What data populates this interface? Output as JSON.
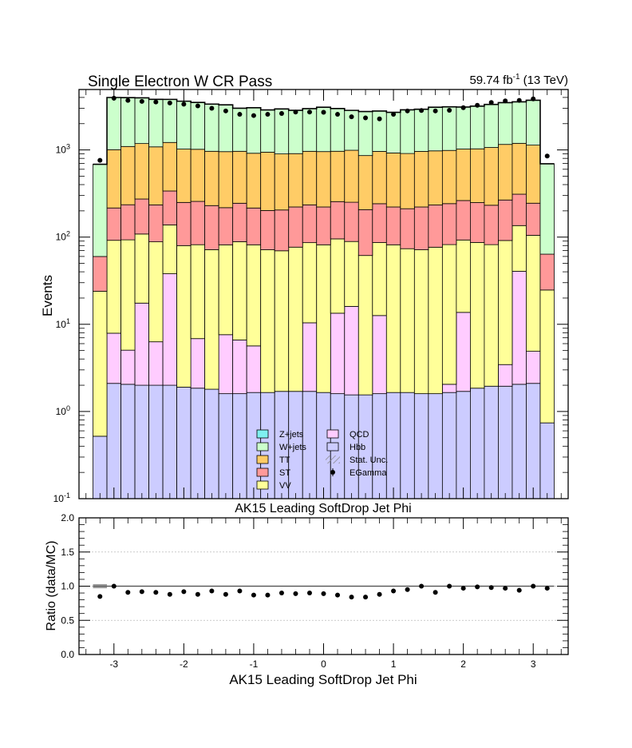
{
  "colors": {
    "zjets": "#7ff0f0",
    "wjets": "#ccffcc",
    "tt": "#ffcc66",
    "st": "#ff9999",
    "vv": "#ffff99",
    "qcd": "#ffccff",
    "hbb": "#ccccff",
    "data": "#000000",
    "unc": "#888888"
  },
  "chart_data": [
    {
      "type": "area",
      "title": "Single Electron W CR Pass",
      "lumi_label": "59.74 fb",
      "lumi_exp": "-1",
      "energy_label": "(13 TeV)",
      "ylabel": "Events",
      "yscale": "log",
      "ylim": [
        0.1,
        6000
      ],
      "yticks": [
        "10",
        "10",
        "10",
        "10",
        "10",
        "10"
      ],
      "yticks_exp": [
        "-1",
        "0",
        "1",
        "2",
        "3",
        ""
      ],
      "xlim": [
        -3.5,
        3.5
      ],
      "subtitle": "AK15 Leading SoftDrop Jet Phi",
      "bin_edges": [
        -3.3,
        -3.1,
        -2.9,
        -2.7,
        -2.5,
        -2.3,
        -2.1,
        -1.9,
        -1.7,
        -1.5,
        -1.3,
        -1.1,
        -0.9,
        -0.7,
        -0.5,
        -0.3,
        -0.1,
        0.1,
        0.3,
        0.5,
        0.7,
        0.9,
        1.1,
        1.3,
        1.5,
        1.7,
        1.9,
        2.1,
        2.3,
        2.5,
        2.7,
        2.9,
        3.1,
        3.3
      ],
      "series": [
        {
          "name": "Hbb",
          "key": "hbb",
          "values": [
            0.42,
            2.0,
            1.95,
            1.9,
            1.9,
            1.9,
            1.8,
            1.75,
            1.7,
            1.5,
            1.5,
            1.55,
            1.55,
            1.6,
            1.6,
            1.6,
            1.55,
            1.5,
            1.45,
            1.45,
            1.5,
            1.55,
            1.55,
            1.5,
            1.5,
            1.55,
            1.6,
            1.75,
            1.85,
            1.85,
            1.95,
            2.0,
            0.64
          ]
        },
        {
          "name": "QCD",
          "key": "qcd",
          "values": [
            0,
            5.8,
            3.0,
            15.5,
            4.3,
            36,
            0,
            5.0,
            0,
            6.0,
            5.0,
            4.0,
            0,
            0,
            0,
            8.7,
            0,
            11.8,
            14.5,
            0,
            11.0,
            0,
            0,
            0,
            0,
            0.4,
            12.0,
            0,
            0,
            1.5,
            38.5,
            2.8,
            0
          ]
        },
        {
          "name": "VV",
          "key": "vv",
          "values": [
            23.4,
            84,
            88,
            91,
            82,
            100,
            78,
            75,
            70,
            74,
            82,
            76,
            70,
            68,
            75,
            76,
            80,
            82,
            73,
            60,
            74,
            80,
            72,
            70,
            75,
            80,
            79,
            85,
            80,
            88,
            95,
            100,
            24
          ]
        },
        {
          "name": "ST",
          "key": "st",
          "values": [
            36,
            124,
            142,
            165,
            146,
            200,
            170,
            175,
            158,
            136,
            156,
            134,
            130,
            135,
            145,
            148,
            140,
            160,
            162,
            145,
            155,
            140,
            138,
            150,
            157,
            160,
            170,
            162,
            150,
            175,
            175,
            140,
            39
          ]
        },
        {
          "name": "TT",
          "key": "tt",
          "values": [
            0,
            790,
            860,
            910,
            850,
            880,
            772,
            760,
            735,
            738,
            720,
            700,
            740,
            695,
            685,
            730,
            735,
            710,
            740,
            655,
            720,
            700,
            698,
            740,
            742,
            745,
            760,
            780,
            835,
            890,
            880,
            890,
            0
          ]
        },
        {
          "name": "W+jets",
          "key": "wjets",
          "values": [
            625,
            2987,
            2880,
            2770,
            2720,
            2580,
            2600,
            2485,
            2390,
            2330,
            2040,
            2130,
            1935,
            2055,
            1940,
            2010,
            2130,
            2016,
            1850,
            1895,
            1831,
            1775,
            1975,
            1970,
            2110,
            2130,
            2082,
            2150,
            2260,
            2330,
            2370,
            2580,
            630
          ]
        },
        {
          "name": "Z+jets",
          "key": "zjets",
          "values": [
            0,
            0,
            0,
            0,
            0,
            0,
            0,
            0,
            0,
            0,
            0,
            0,
            0,
            0,
            0,
            0,
            0,
            0,
            0,
            0,
            0,
            0,
            0,
            0,
            0,
            0,
            0,
            0,
            0,
            0,
            0,
            0,
            0
          ]
        }
      ],
      "data": {
        "name": "EGamma",
        "x": [
          -3.2,
          -3.0,
          -2.8,
          -2.6,
          -2.4,
          -2.2,
          -2.0,
          -1.8,
          -1.6,
          -1.4,
          -1.2,
          -1.0,
          -0.8,
          -0.6,
          -0.4,
          -0.2,
          0.0,
          0.2,
          0.4,
          0.6,
          0.8,
          1.0,
          1.2,
          1.4,
          1.6,
          1.8,
          2.0,
          2.2,
          2.4,
          2.6,
          2.8,
          3.0,
          3.2
        ],
        "y": [
          760,
          3920,
          3700,
          3600,
          3550,
          3450,
          3350,
          3200,
          3000,
          2800,
          2560,
          2480,
          2560,
          2620,
          2720,
          2720,
          2700,
          2560,
          2400,
          2330,
          2270,
          2560,
          2800,
          2830,
          2800,
          2850,
          3050,
          3250,
          3500,
          3650,
          3700,
          3850,
          850
        ]
      },
      "legend_placement": "bottom-center",
      "legend": [
        {
          "label": "Z+jets",
          "key": "zjets",
          "kind": "box"
        },
        {
          "label": "QCD",
          "key": "qcd",
          "kind": "box"
        },
        {
          "label": "W+jets",
          "key": "wjets",
          "kind": "box"
        },
        {
          "label": "Hbb",
          "key": "hbb",
          "kind": "box"
        },
        {
          "label": "TT",
          "key": "tt",
          "kind": "box"
        },
        {
          "label": "Stat. Unc.",
          "key": "unc",
          "kind": "hatch"
        },
        {
          "label": "ST",
          "key": "st",
          "kind": "box"
        },
        {
          "label": "EGamma",
          "key": "data",
          "kind": "point"
        },
        {
          "label": "VV",
          "key": "vv",
          "kind": "box"
        }
      ]
    },
    {
      "type": "scatter",
      "xlabel": "AK15 Leading SoftDrop Jet Phi",
      "ylabel": "Ratio (data/MC)",
      "xlim": [
        -3.5,
        3.5
      ],
      "ylim": [
        0.0,
        2.0
      ],
      "grid": true,
      "yticks": [
        "0.0",
        "0.5",
        "1.0",
        "1.5",
        "2.0"
      ],
      "xticks": [
        "-3",
        "-2",
        "-1",
        "0",
        "1",
        "2",
        "3"
      ],
      "x": [
        -3.2,
        -3.0,
        -2.8,
        -2.6,
        -2.4,
        -2.2,
        -2.0,
        -1.8,
        -1.6,
        -1.4,
        -1.2,
        -1.0,
        -0.8,
        -0.6,
        -0.4,
        -0.2,
        0.0,
        0.2,
        0.4,
        0.6,
        0.8,
        1.0,
        1.2,
        1.4,
        1.6,
        1.8,
        2.0,
        2.2,
        2.4,
        2.6,
        2.8,
        3.0,
        3.2
      ],
      "y": [
        0.85,
        1.0,
        0.91,
        0.92,
        0.91,
        0.88,
        0.92,
        0.88,
        0.93,
        0.88,
        0.93,
        0.87,
        0.87,
        0.9,
        0.89,
        0.9,
        0.89,
        0.87,
        0.84,
        0.84,
        0.88,
        0.93,
        0.95,
        1.0,
        0.91,
        1.0,
        0.97,
        0.99,
        0.98,
        0.97,
        0.94,
        1.0,
        0.97
      ],
      "reference": 1.0
    }
  ]
}
